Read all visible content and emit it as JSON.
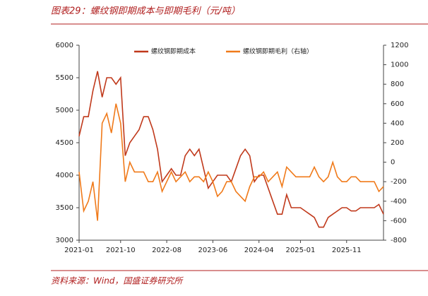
{
  "chart_data": {
    "type": "line",
    "title": "图表29：螺纹钢即期成本与即期毛利（元/吨）",
    "source": "资料来源：Wind，国盛证券研究所",
    "x": [
      "2021-01",
      "2021-02",
      "2021-03",
      "2021-04",
      "2021-05",
      "2021-06",
      "2021-07",
      "2021-08",
      "2021-09",
      "2021-10",
      "2021-11",
      "2021-12",
      "2022-01",
      "2022-02",
      "2022-03",
      "2022-04",
      "2022-05",
      "2022-06",
      "2022-07",
      "2022-08",
      "2022-09",
      "2022-10",
      "2022-11",
      "2022-12",
      "2023-01",
      "2023-02",
      "2023-03",
      "2023-04",
      "2023-05",
      "2023-06",
      "2023-07",
      "2023-08",
      "2023-09",
      "2023-10",
      "2023-11",
      "2023-12",
      "2024-01",
      "2024-02",
      "2024-03",
      "2024-04",
      "2024-05",
      "2024-06",
      "2024-07",
      "2024-08",
      "2024-09",
      "2024-10",
      "2024-11",
      "2024-12",
      "2025-01",
      "2025-02",
      "2025-03",
      "2025-04",
      "2025-05",
      "2025-06",
      "2025-07",
      "2025-08",
      "2025-09",
      "2025-10",
      "2025-11",
      "2025-12",
      "2026-01",
      "2026-02",
      "2026-03",
      "2026-04",
      "2026-05",
      "2026-06",
      "2026-07"
    ],
    "xticks": [
      "2021-01",
      "2021-10",
      "2022-08",
      "2023-06",
      "2024-04",
      "2025-01",
      "2025-11"
    ],
    "ylim": [
      3000,
      6000
    ],
    "yticks": [
      3000,
      3500,
      4000,
      4500,
      5000,
      5500,
      6000
    ],
    "y2lim": [
      -800,
      1200
    ],
    "y2ticks": [
      -800,
      -600,
      -400,
      -200,
      0,
      200,
      400,
      600,
      800,
      1000,
      1200
    ],
    "legend": "top",
    "series": [
      {
        "name": "螺纹钢即期成本",
        "color": "#c0391b",
        "values": [
          4600,
          4900,
          4900,
          5300,
          5600,
          5200,
          5500,
          5500,
          5400,
          5500,
          4300,
          4500,
          4600,
          4700,
          4900,
          4900,
          4700,
          4400,
          3900,
          4000,
          4100,
          4000,
          4000,
          4300,
          4400,
          4300,
          4400,
          4100,
          3800,
          3900,
          4000,
          4000,
          4000,
          3900,
          4100,
          4300,
          4400,
          4300,
          3900,
          4000,
          4000,
          3800,
          3600,
          3400,
          3400,
          3700,
          3500,
          3500,
          3500,
          3450,
          3400,
          3350,
          3200,
          3200,
          3350,
          3400,
          3450,
          3500,
          3500,
          3450,
          3450,
          3500,
          3500,
          3500,
          3500,
          3550,
          3400
        ]
      },
      {
        "name": "螺纹钢即期毛利（右轴）",
        "color": "#f07a1a",
        "axis": "y2",
        "values": [
          -100,
          -500,
          -400,
          -200,
          -600,
          400,
          500,
          300,
          600,
          400,
          -200,
          0,
          -100,
          -100,
          -100,
          -200,
          -200,
          -100,
          -300,
          -200,
          -100,
          -200,
          -150,
          -100,
          -200,
          -150,
          -150,
          -200,
          -100,
          -200,
          -350,
          -300,
          -200,
          -200,
          -300,
          -350,
          -400,
          -250,
          -150,
          -150,
          -100,
          -200,
          -150,
          -100,
          -250,
          -50,
          -100,
          -150,
          -150,
          -150,
          -150,
          -50,
          -150,
          -200,
          -150,
          0,
          -150,
          -200,
          -200,
          -150,
          -150,
          -200,
          -200,
          -200,
          -200,
          -300,
          -250
        ]
      }
    ]
  }
}
